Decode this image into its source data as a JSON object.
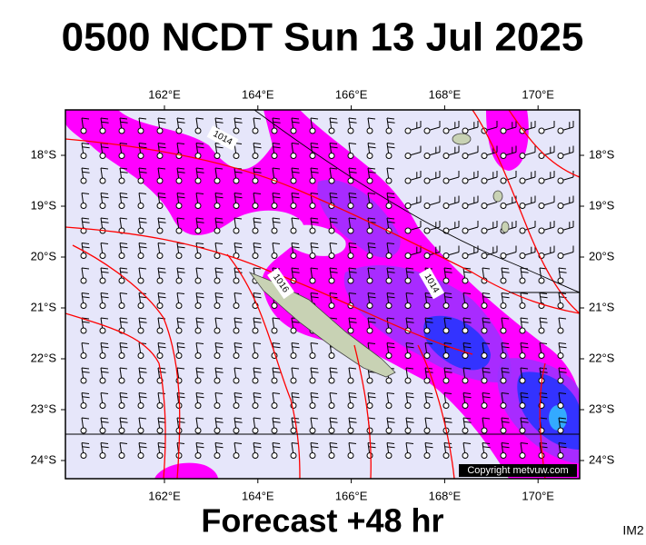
{
  "map": {
    "title": "0500 NCDT Sun 13 Jul 2025",
    "lon_ticks": [
      {
        "value": 162,
        "label": "162°E"
      },
      {
        "value": 164,
        "label": "164°E"
      },
      {
        "value": 166,
        "label": "166°E"
      },
      {
        "value": 168,
        "label": "168°E"
      },
      {
        "value": 170,
        "label": "170°E"
      }
    ],
    "lat_ticks": [
      {
        "value": -18,
        "label": "18°S"
      },
      {
        "value": -19,
        "label": "19°S"
      },
      {
        "value": -20,
        "label": "20°S"
      },
      {
        "value": -21,
        "label": "21°S"
      },
      {
        "value": -22,
        "label": "22°S"
      },
      {
        "value": -23,
        "label": "23°S"
      },
      {
        "value": -24,
        "label": "24°S"
      }
    ],
    "contour_labels": [
      "1014",
      "1016",
      "1014"
    ],
    "copyright": "Copyright metvuw.com"
  },
  "footer": {
    "forecast": "Forecast +48 hr",
    "id": "IM2"
  }
}
